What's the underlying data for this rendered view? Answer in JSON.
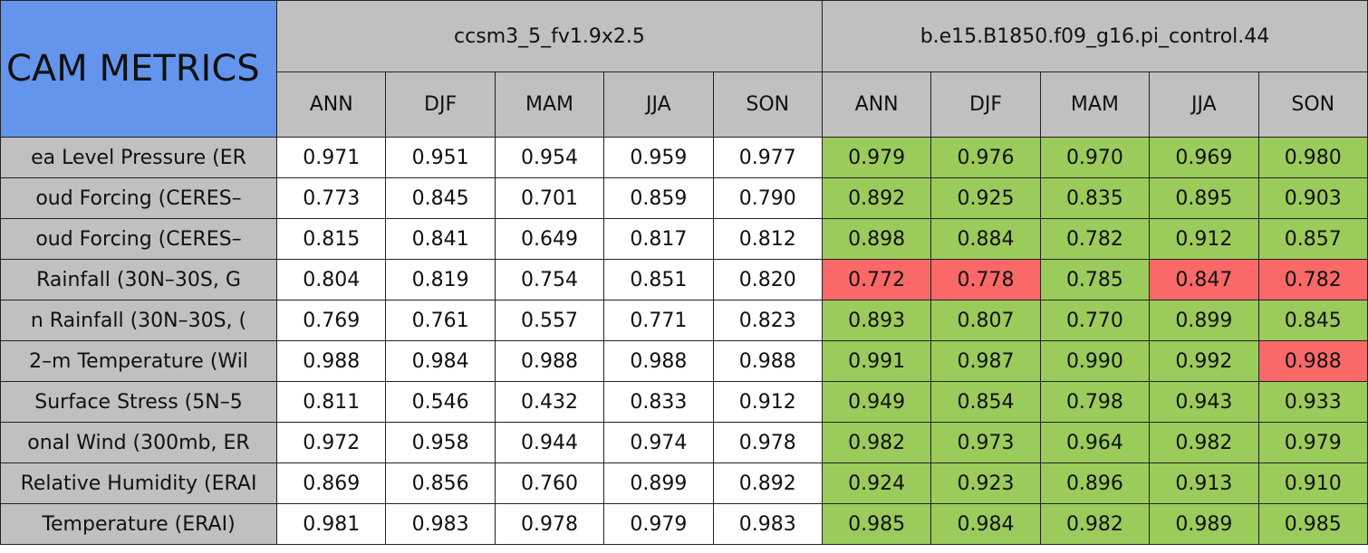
{
  "title": "CAM METRICS",
  "models": [
    "ccsm3_5_fv1.9x2.5",
    "b.e15.B1850.f09_g16.pi_control.44"
  ],
  "seasons": [
    "ANN",
    "DJF",
    "MAM",
    "JJA",
    "SON",
    "ANN",
    "DJF",
    "MAM",
    "JJA",
    "SON"
  ],
  "colors": {
    "good": "#9bcb5b",
    "bad": "#fa6868",
    "plain": "#ffffff"
  },
  "rows": [
    {
      "label": "ea Level Pressure (ER",
      "values": [
        "0.971",
        "0.951",
        "0.954",
        "0.959",
        "0.977",
        "0.979",
        "0.976",
        "0.970",
        "0.969",
        "0.980"
      ],
      "status": [
        "plain",
        "plain",
        "plain",
        "plain",
        "plain",
        "good",
        "good",
        "good",
        "good",
        "good"
      ]
    },
    {
      "label": "oud Forcing (CERES–",
      "values": [
        "0.773",
        "0.845",
        "0.701",
        "0.859",
        "0.790",
        "0.892",
        "0.925",
        "0.835",
        "0.895",
        "0.903"
      ],
      "status": [
        "plain",
        "plain",
        "plain",
        "plain",
        "plain",
        "good",
        "good",
        "good",
        "good",
        "good"
      ]
    },
    {
      "label": "oud Forcing (CERES–",
      "values": [
        "0.815",
        "0.841",
        "0.649",
        "0.817",
        "0.812",
        "0.898",
        "0.884",
        "0.782",
        "0.912",
        "0.857"
      ],
      "status": [
        "plain",
        "plain",
        "plain",
        "plain",
        "plain",
        "good",
        "good",
        "good",
        "good",
        "good"
      ]
    },
    {
      "label": "Rainfall (30N–30S, G",
      "values": [
        "0.804",
        "0.819",
        "0.754",
        "0.851",
        "0.820",
        "0.772",
        "0.778",
        "0.785",
        "0.847",
        "0.782"
      ],
      "status": [
        "plain",
        "plain",
        "plain",
        "plain",
        "plain",
        "bad",
        "bad",
        "good",
        "bad",
        "bad"
      ]
    },
    {
      "label": "n Rainfall (30N–30S, (",
      "values": [
        "0.769",
        "0.761",
        "0.557",
        "0.771",
        "0.823",
        "0.893",
        "0.807",
        "0.770",
        "0.899",
        "0.845"
      ],
      "status": [
        "plain",
        "plain",
        "plain",
        "plain",
        "plain",
        "good",
        "good",
        "good",
        "good",
        "good"
      ]
    },
    {
      "label": "2–m Temperature (Wil",
      "values": [
        "0.988",
        "0.984",
        "0.988",
        "0.988",
        "0.988",
        "0.991",
        "0.987",
        "0.990",
        "0.992",
        "0.988"
      ],
      "status": [
        "plain",
        "plain",
        "plain",
        "plain",
        "plain",
        "good",
        "good",
        "good",
        "good",
        "bad"
      ]
    },
    {
      "label": "Surface Stress (5N–5",
      "values": [
        "0.811",
        "0.546",
        "0.432",
        "0.833",
        "0.912",
        "0.949",
        "0.854",
        "0.798",
        "0.943",
        "0.933"
      ],
      "status": [
        "plain",
        "plain",
        "plain",
        "plain",
        "plain",
        "good",
        "good",
        "good",
        "good",
        "good"
      ]
    },
    {
      "label": "onal Wind (300mb, ER",
      "values": [
        "0.972",
        "0.958",
        "0.944",
        "0.974",
        "0.978",
        "0.982",
        "0.973",
        "0.964",
        "0.982",
        "0.979"
      ],
      "status": [
        "plain",
        "plain",
        "plain",
        "plain",
        "plain",
        "good",
        "good",
        "good",
        "good",
        "good"
      ]
    },
    {
      "label": "Relative Humidity (ERAI",
      "values": [
        "0.869",
        "0.856",
        "0.760",
        "0.899",
        "0.892",
        "0.924",
        "0.923",
        "0.896",
        "0.913",
        "0.910"
      ],
      "status": [
        "plain",
        "plain",
        "plain",
        "plain",
        "plain",
        "good",
        "good",
        "good",
        "good",
        "good"
      ]
    },
    {
      "label": "Temperature (ERAI)",
      "values": [
        "0.981",
        "0.983",
        "0.978",
        "0.979",
        "0.983",
        "0.985",
        "0.984",
        "0.982",
        "0.989",
        "0.985"
      ],
      "status": [
        "plain",
        "plain",
        "plain",
        "plain",
        "plain",
        "good",
        "good",
        "good",
        "good",
        "good"
      ]
    }
  ]
}
